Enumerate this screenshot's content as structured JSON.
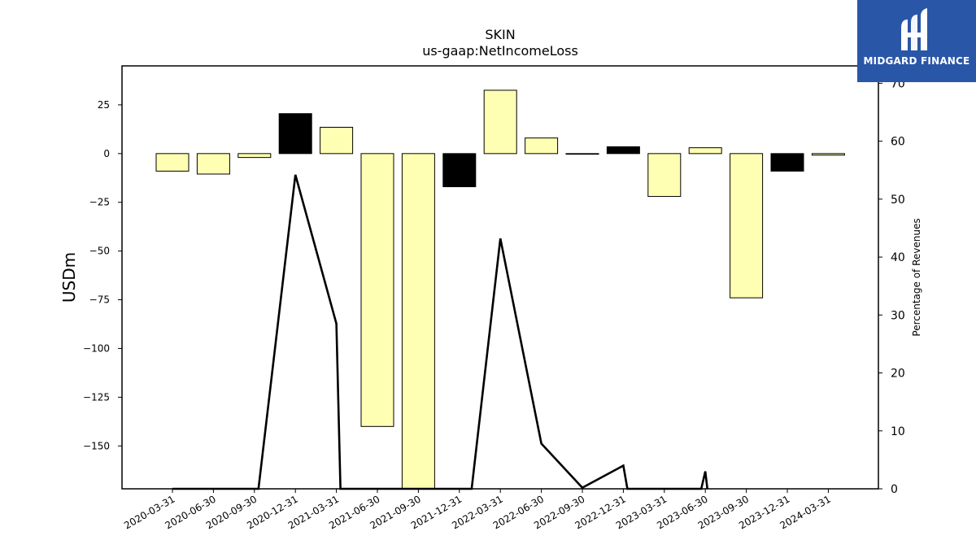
{
  "chart_data": {
    "type": "bar",
    "title": "SKIN",
    "subtitle": "us-gaap:NetIncomeLoss",
    "ylabel": "USDm",
    "y2label": "Percentage of Revenues",
    "ylim": [
      -172,
      45
    ],
    "y2lim": [
      0,
      73
    ],
    "yticks": [
      25,
      0,
      -25,
      -50,
      -75,
      -100,
      -125,
      -150
    ],
    "yticklabels": [
      "25",
      "0",
      "−25",
      "−50",
      "−75",
      "−100",
      "−125",
      "−150"
    ],
    "y2ticks": [
      0,
      10,
      20,
      30,
      40,
      50,
      60,
      70
    ],
    "categories": [
      "2020-03-31",
      "2020-06-30",
      "2020-09-30",
      "2020-12-31",
      "2021-03-31",
      "2021-06-30",
      "2021-09-30",
      "2021-12-31",
      "2022-03-31",
      "2022-06-30",
      "2022-09-30",
      "2022-12-31",
      "2023-03-31",
      "2023-06-30",
      "2023-09-30",
      "2023-12-31",
      "2024-03-31"
    ],
    "series": [
      {
        "type": "bar",
        "values": [
          -9,
          -10.5,
          -2,
          20.5,
          13.5,
          -140,
          -172,
          -17,
          32.5,
          8,
          -0.2,
          3.5,
          -22,
          3,
          -74,
          -9,
          -0.8
        ],
        "colors": [
          "#ffffb3",
          "#ffffb3",
          "#ffffb3",
          "#000000",
          "#ffffb3",
          "#ffffb3",
          "#ffffb3",
          "#000000",
          "#ffffb3",
          "#ffffb3",
          "#000000",
          "#000000",
          "#ffffb3",
          "#ffffb3",
          "#ffffb3",
          "#000000",
          "#ffffb3"
        ]
      },
      {
        "type": "line",
        "axis": "right",
        "color": "#000000",
        "points": [
          [
            0,
            0
          ],
          [
            2.1,
            0
          ],
          [
            3,
            54.2
          ],
          [
            4,
            28.5
          ],
          [
            4.1,
            0
          ],
          [
            6.55,
            0
          ],
          [
            7.3,
            0
          ],
          [
            8,
            43.2
          ],
          [
            9,
            7.8
          ],
          [
            10,
            0.2
          ],
          [
            11,
            4
          ],
          [
            11.1,
            0
          ],
          [
            12.9,
            0
          ],
          [
            13,
            3
          ],
          [
            13.05,
            0
          ]
        ]
      }
    ]
  },
  "logo": {
    "text": "MIDGARD FINANCE",
    "bg_color": "#2a56a8"
  }
}
